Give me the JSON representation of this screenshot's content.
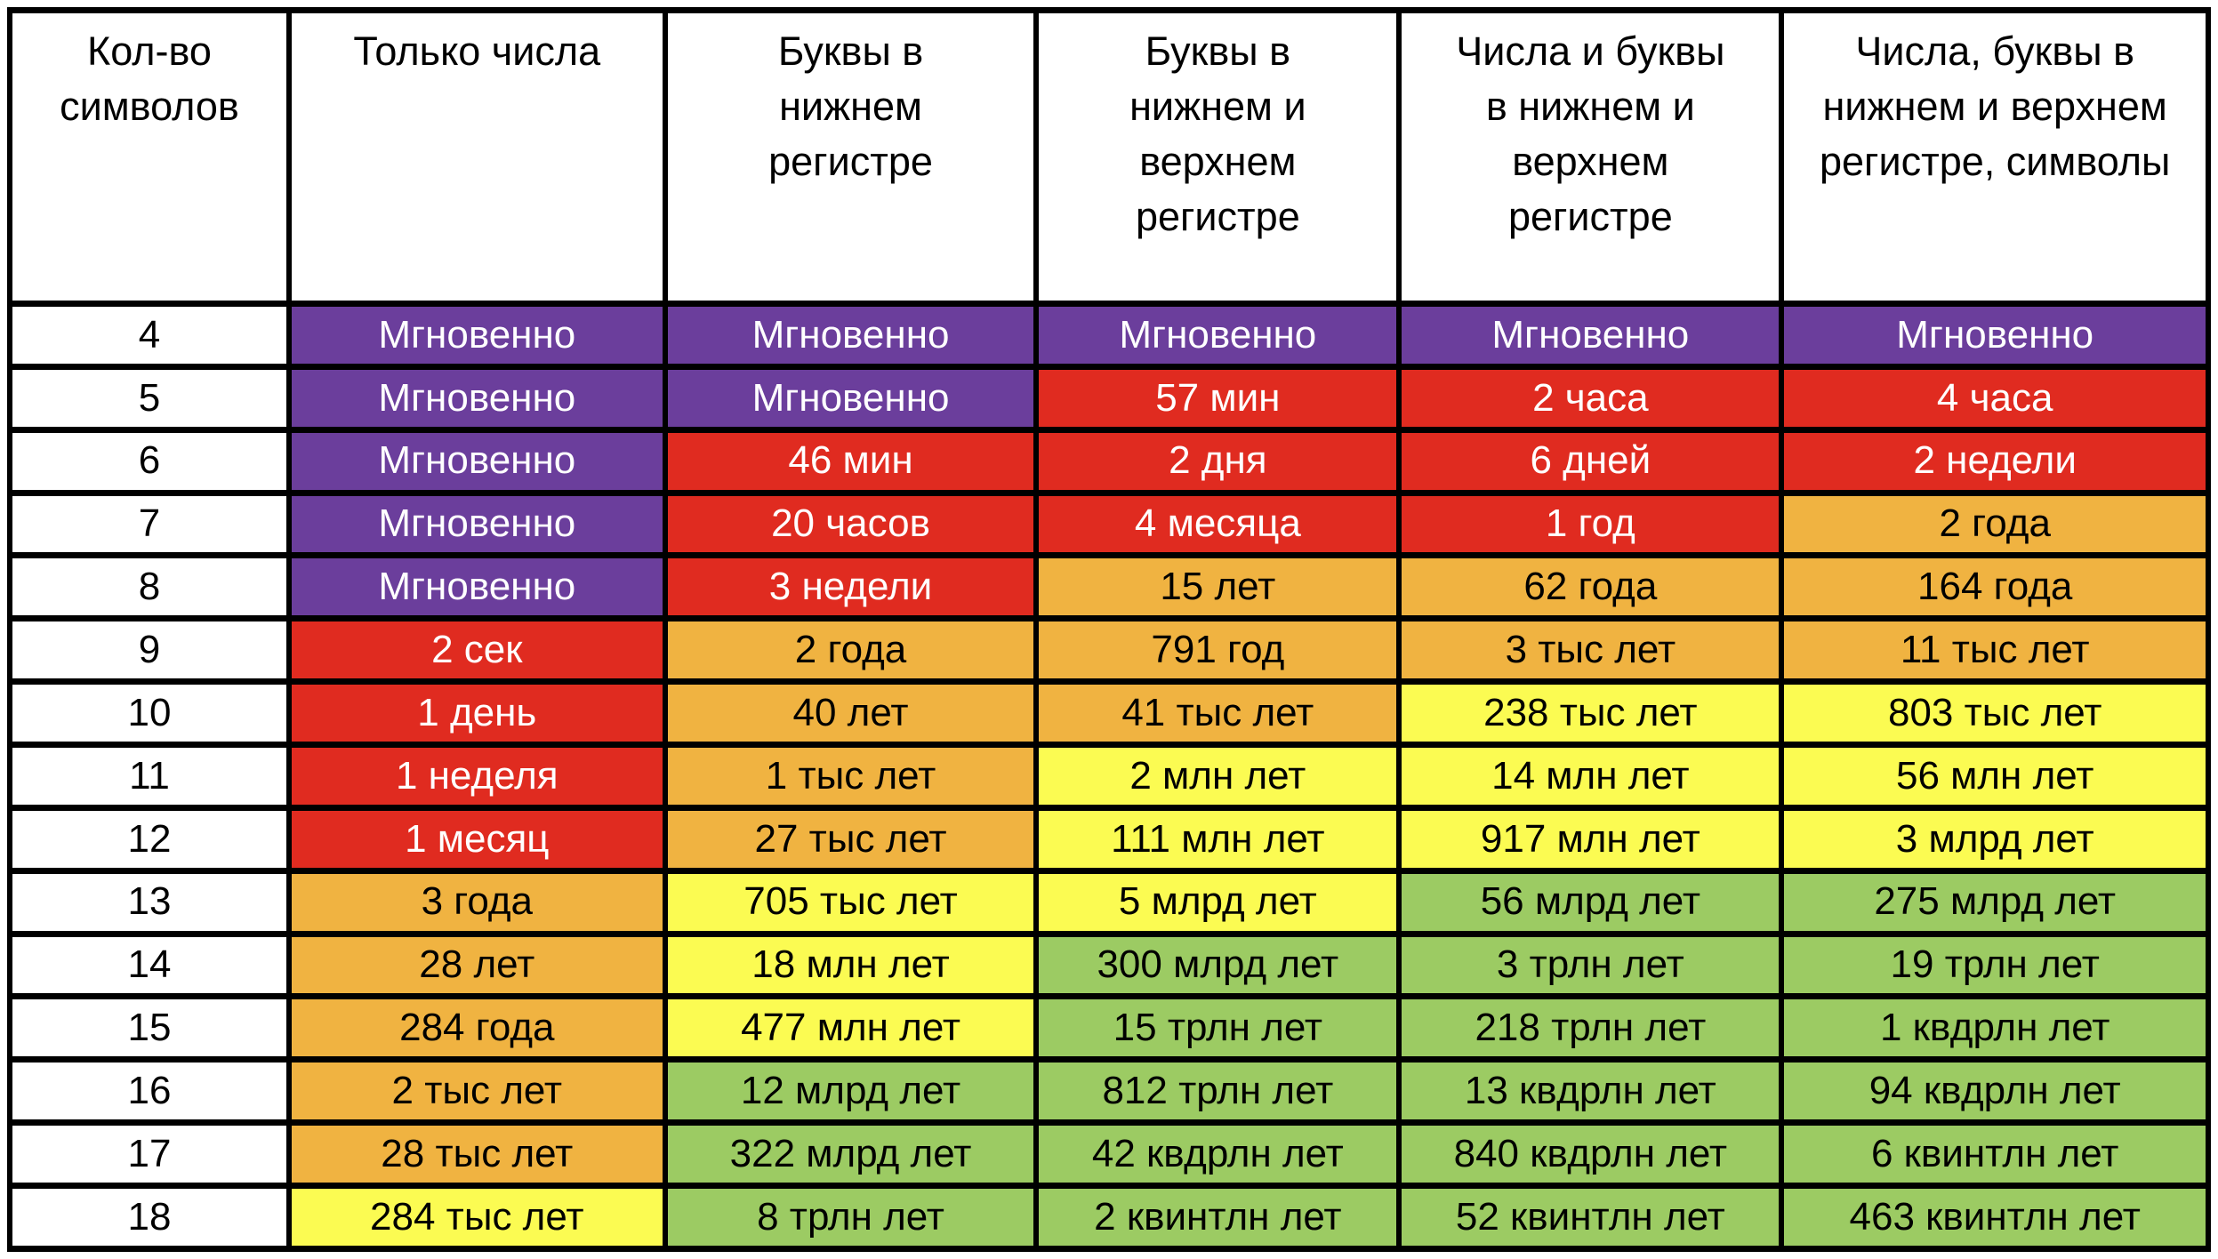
{
  "chart_data": {
    "type": "table",
    "description_semantic": "password-brute-force-time-table",
    "columns": [
      "Кол-во\nсимволов",
      "Только числа",
      "Буквы в\nнижнем\nрегистре",
      "Буквы в\nнижнем и\nверхнем\nрегистре",
      "Числа и буквы\nв нижнем и\nверхнем\nрегистре",
      "Числа, буквы в\nнижнем и верхнем\nрегистре, символы"
    ],
    "levels": {
      "instant": {
        "background": "#6B3E9C",
        "text_color": "#FFFFFF"
      },
      "danger": {
        "background": "#E02B20",
        "text_color": "#FFFFFF"
      },
      "warning": {
        "background": "#F0B341",
        "text_color": "#000000"
      },
      "caution": {
        "background": "#FBFB52",
        "text_color": "#000000"
      },
      "safe": {
        "background": "#9CCB63",
        "text_color": "#000000"
      }
    },
    "rows": [
      {
        "chars": "4",
        "cells": [
          {
            "text": "Мгновенно",
            "level": "instant"
          },
          {
            "text": "Мгновенно",
            "level": "instant"
          },
          {
            "text": "Мгновенно",
            "level": "instant"
          },
          {
            "text": "Мгновенно",
            "level": "instant"
          },
          {
            "text": "Мгновенно",
            "level": "instant"
          }
        ]
      },
      {
        "chars": "5",
        "cells": [
          {
            "text": "Мгновенно",
            "level": "instant"
          },
          {
            "text": "Мгновенно",
            "level": "instant"
          },
          {
            "text": "57 мин",
            "level": "danger"
          },
          {
            "text": "2 часа",
            "level": "danger"
          },
          {
            "text": "4 часа",
            "level": "danger"
          }
        ]
      },
      {
        "chars": "6",
        "cells": [
          {
            "text": "Мгновенно",
            "level": "instant"
          },
          {
            "text": "46 мин",
            "level": "danger"
          },
          {
            "text": "2 дня",
            "level": "danger"
          },
          {
            "text": "6 дней",
            "level": "danger"
          },
          {
            "text": "2 недели",
            "level": "danger"
          }
        ]
      },
      {
        "chars": "7",
        "cells": [
          {
            "text": "Мгновенно",
            "level": "instant"
          },
          {
            "text": "20 часов",
            "level": "danger"
          },
          {
            "text": "4 месяца",
            "level": "danger"
          },
          {
            "text": "1 год",
            "level": "danger"
          },
          {
            "text": "2 года",
            "level": "warning"
          }
        ]
      },
      {
        "chars": "8",
        "cells": [
          {
            "text": "Мгновенно",
            "level": "instant"
          },
          {
            "text": "3 недели",
            "level": "danger"
          },
          {
            "text": "15 лет",
            "level": "warning"
          },
          {
            "text": "62 года",
            "level": "warning"
          },
          {
            "text": "164 года",
            "level": "warning"
          }
        ]
      },
      {
        "chars": "9",
        "cells": [
          {
            "text": "2 сек",
            "level": "danger"
          },
          {
            "text": "2 года",
            "level": "warning"
          },
          {
            "text": "791 год",
            "level": "warning"
          },
          {
            "text": "3 тыс лет",
            "level": "warning"
          },
          {
            "text": "11 тыс лет",
            "level": "warning"
          }
        ]
      },
      {
        "chars": "10",
        "cells": [
          {
            "text": "1 день",
            "level": "danger"
          },
          {
            "text": "40 лет",
            "level": "warning"
          },
          {
            "text": "41 тыс лет",
            "level": "warning"
          },
          {
            "text": "238 тыс лет",
            "level": "caution"
          },
          {
            "text": "803 тыс лет",
            "level": "caution"
          }
        ]
      },
      {
        "chars": "11",
        "cells": [
          {
            "text": "1 неделя",
            "level": "danger"
          },
          {
            "text": "1 тыс лет",
            "level": "warning"
          },
          {
            "text": "2 млн лет",
            "level": "caution"
          },
          {
            "text": "14 млн лет",
            "level": "caution"
          },
          {
            "text": "56 млн лет",
            "level": "caution"
          }
        ]
      },
      {
        "chars": "12",
        "cells": [
          {
            "text": "1 месяц",
            "level": "danger"
          },
          {
            "text": "27 тыс лет",
            "level": "warning"
          },
          {
            "text": "111 млн лет",
            "level": "caution"
          },
          {
            "text": "917 млн лет",
            "level": "caution"
          },
          {
            "text": "3 млрд лет",
            "level": "caution"
          }
        ]
      },
      {
        "chars": "13",
        "cells": [
          {
            "text": "3 года",
            "level": "warning"
          },
          {
            "text": "705 тыс лет",
            "level": "caution"
          },
          {
            "text": "5 млрд лет",
            "level": "caution"
          },
          {
            "text": "56 млрд лет",
            "level": "safe"
          },
          {
            "text": "275 млрд лет",
            "level": "safe"
          }
        ]
      },
      {
        "chars": "14",
        "cells": [
          {
            "text": "28 лет",
            "level": "warning"
          },
          {
            "text": "18 млн лет",
            "level": "caution"
          },
          {
            "text": "300 млрд лет",
            "level": "safe"
          },
          {
            "text": "3 трлн лет",
            "level": "safe"
          },
          {
            "text": "19 трлн лет",
            "level": "safe"
          }
        ]
      },
      {
        "chars": "15",
        "cells": [
          {
            "text": "284 года",
            "level": "warning"
          },
          {
            "text": "477 млн лет",
            "level": "caution"
          },
          {
            "text": "15 трлн лет",
            "level": "safe"
          },
          {
            "text": "218 трлн лет",
            "level": "safe"
          },
          {
            "text": "1 квдрлн лет",
            "level": "safe"
          }
        ]
      },
      {
        "chars": "16",
        "cells": [
          {
            "text": "2 тыс лет",
            "level": "warning"
          },
          {
            "text": "12 млрд лет",
            "level": "safe"
          },
          {
            "text": "812 трлн лет",
            "level": "safe"
          },
          {
            "text": "13 квдрлн лет",
            "level": "safe"
          },
          {
            "text": "94 квдрлн лет",
            "level": "safe"
          }
        ]
      },
      {
        "chars": "17",
        "cells": [
          {
            "text": "28 тыс лет",
            "level": "warning"
          },
          {
            "text": "322 млрд лет",
            "level": "safe"
          },
          {
            "text": "42 квдрлн лет",
            "level": "safe"
          },
          {
            "text": "840 квдрлн лет",
            "level": "safe"
          },
          {
            "text": "6 квинтлн лет",
            "level": "safe"
          }
        ]
      },
      {
        "chars": "18",
        "cells": [
          {
            "text": "284 тыс лет",
            "level": "caution"
          },
          {
            "text": "8 трлн лет",
            "level": "safe"
          },
          {
            "text": "2 квинтлн лет",
            "level": "safe"
          },
          {
            "text": "52 квинтлн лет",
            "level": "safe"
          },
          {
            "text": "463 квинтлн лет",
            "level": "safe"
          }
        ]
      }
    ],
    "column_widths_percent": [
      12.7,
      17.1,
      16.9,
      16.5,
      17.4,
      19.4
    ]
  }
}
